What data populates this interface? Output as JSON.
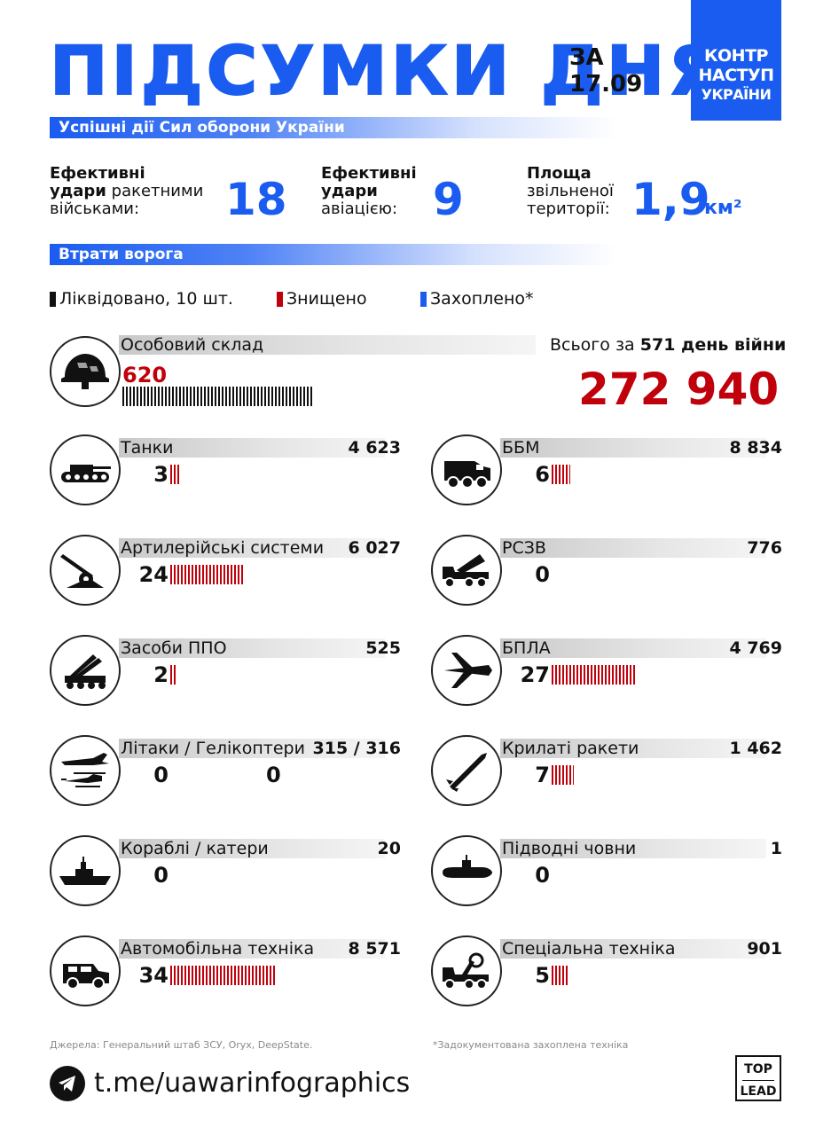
{
  "header": {
    "title": "ПІДСУМКИ ДНЯ",
    "date_prefix": "ЗА",
    "date": "17.09",
    "badge": [
      "КОНТР",
      "НАСТУП",
      "УКРАЇНИ"
    ]
  },
  "section1": {
    "heading": "Успішні дії Сил оборони України"
  },
  "stats": [
    {
      "bold": "Ефективні",
      "bold2": "удари",
      "rest": " ракетними",
      "line3": "військами:",
      "value": "18"
    },
    {
      "bold": "Ефективні",
      "bold2": "удари",
      "line3": "авіацією:",
      "value": "9"
    },
    {
      "bold": "Площа",
      "line2": "звільненої",
      "line3": "території:",
      "value": "1,9",
      "unit": "км²"
    }
  ],
  "section2": {
    "heading": "Втрати ворога"
  },
  "legend": [
    {
      "label": "Ліквідовано, 10 шт.",
      "color": "#111111"
    },
    {
      "label": "Знищено",
      "color": "#c0000a"
    },
    {
      "label": "Захоплено*",
      "color": "#1a5cf0"
    }
  ],
  "personnel": {
    "name": "Особовий склад",
    "today": "620",
    "today_value": 620,
    "total_prefix": "Всього за",
    "total_days": "571 день війни",
    "total": "272 940",
    "icon": "helmet-icon"
  },
  "items_left": [
    {
      "name": "Танки",
      "total": "4 623",
      "count": "3",
      "count_value": 3,
      "icon": "tank-icon"
    },
    {
      "name": "Артилерійські системи",
      "total": "6 027",
      "count": "24",
      "count_value": 24,
      "icon": "artillery-icon"
    },
    {
      "name": "Засоби ППО",
      "total": "525",
      "count": "2",
      "count_value": 2,
      "icon": "air-defense-icon"
    },
    {
      "name": "Літаки / Гелікоптери",
      "total": "315 / 316",
      "count": "0",
      "count2": "0",
      "count_value": 0,
      "icon": "aircraft-helicopter-icon"
    },
    {
      "name": "Кораблі / катери",
      "total": "20",
      "count": "0",
      "count_value": 0,
      "icon": "ship-icon"
    },
    {
      "name": "Автомобільна техніка",
      "total": "8 571",
      "count": "34",
      "count_value": 34,
      "icon": "vehicle-icon"
    }
  ],
  "items_right": [
    {
      "name": "ББМ",
      "total": "8 834",
      "count": "6",
      "count_value": 6,
      "icon": "apc-icon"
    },
    {
      "name": "РСЗВ",
      "total": "776",
      "count": "0",
      "count_value": 0,
      "icon": "mlrs-icon"
    },
    {
      "name": "БПЛА",
      "total": "4 769",
      "count": "27",
      "count_value": 27,
      "icon": "drone-icon"
    },
    {
      "name": "Крилаті ракети",
      "total": "1 462",
      "count": "7",
      "count_value": 7,
      "icon": "cruise-missile-icon"
    },
    {
      "name": "Підводні човни",
      "total": "1",
      "count": "0",
      "count_value": 0,
      "icon": "submarine-icon"
    },
    {
      "name": "Спеціальна техніка",
      "total": "901",
      "count": "5",
      "count_value": 5,
      "icon": "special-equipment-icon"
    }
  ],
  "footer": {
    "sources": "Джерела: Генеральний штаб ЗСУ, Oryx, DeepState.",
    "note": "*Задокументована захоплена техніка",
    "link": "t.me/uawarinfographics",
    "logo_top": "TOP",
    "logo_bottom": "LEAD"
  },
  "colors": {
    "accent": "#1a5cf0",
    "destroyed": "#c0000a",
    "text": "#111111"
  }
}
